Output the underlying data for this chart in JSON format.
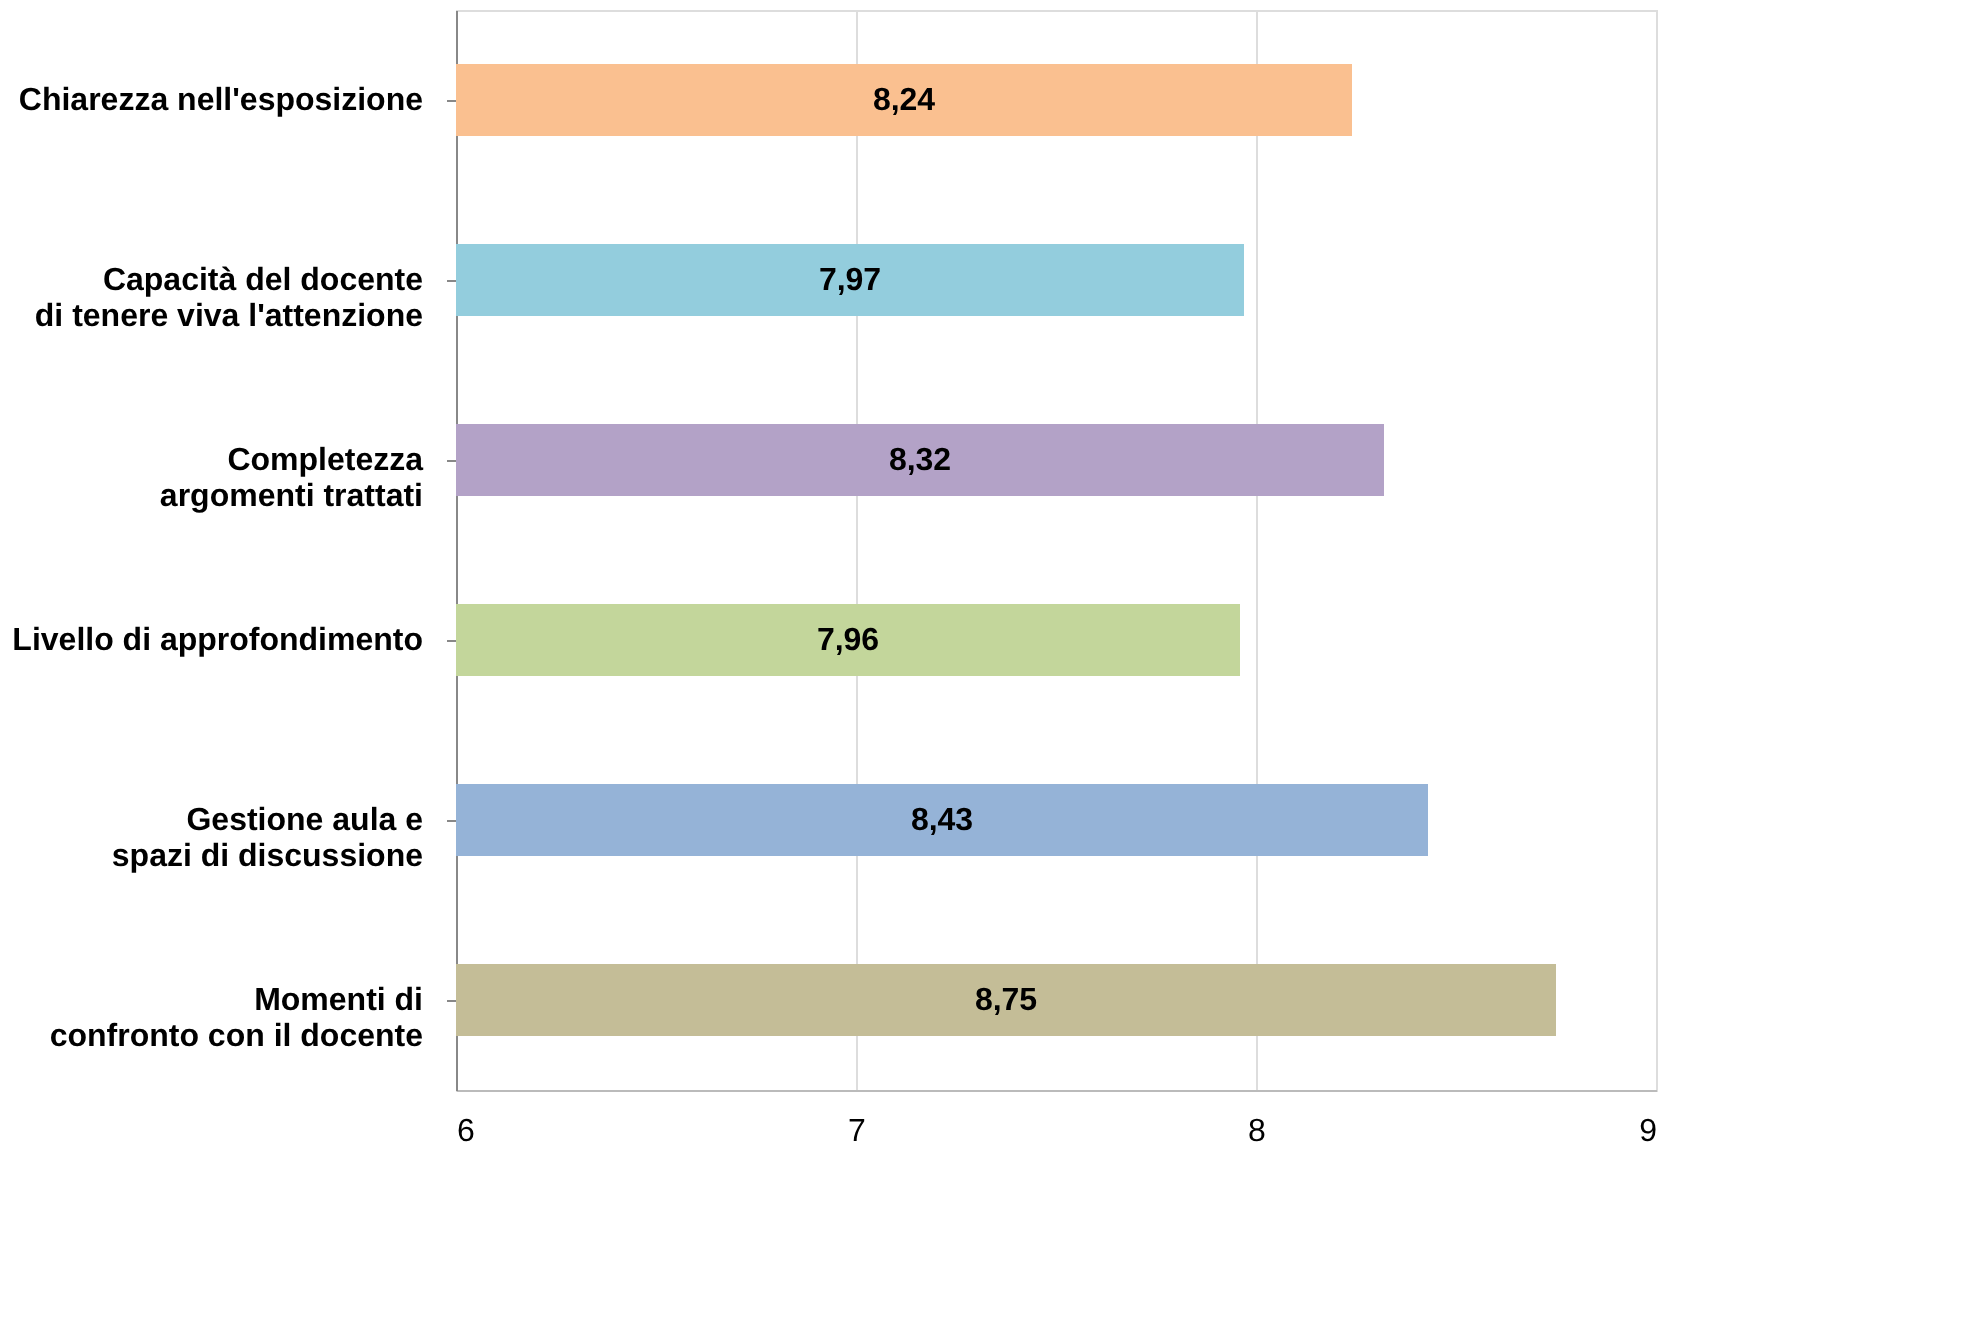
{
  "chart_data": {
    "type": "bar",
    "orientation": "horizontal",
    "categories": [
      "Chiarezza nell'esposizione",
      "Capacità del docente\ndi tenere viva l'attenzione",
      "Completezza\nargomenti trattati",
      "Livello di approfondimento",
      "Gestione aula e\nspazi di discussione",
      "Momenti di\nconfronto con il docente"
    ],
    "values": [
      8.24,
      7.97,
      8.32,
      7.96,
      8.43,
      8.75
    ],
    "value_labels": [
      "8,24",
      "7,97",
      "8,32",
      "7,96",
      "8,43",
      "8,75"
    ],
    "colors": [
      "#fac090",
      "#93cddd",
      "#b3a2c7",
      "#c3d69b",
      "#95b3d7",
      "#c4bd97"
    ],
    "xlim": [
      6,
      9
    ],
    "xticks": [
      6,
      7,
      8,
      9
    ],
    "grid": "x"
  }
}
